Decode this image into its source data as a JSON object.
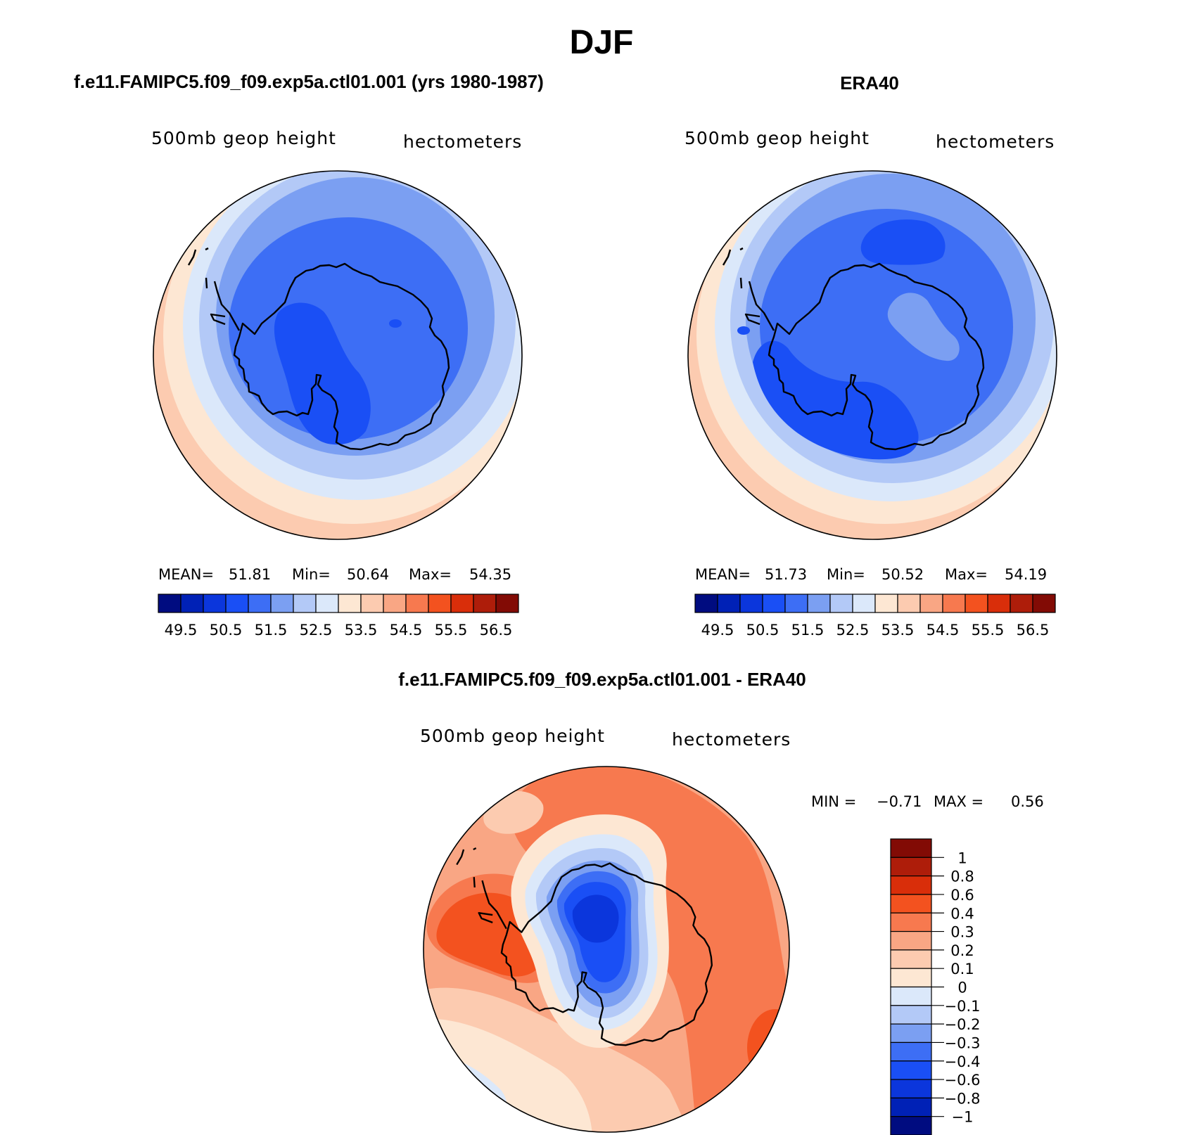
{
  "figure": {
    "title": "DJF",
    "colors": {
      "palette": [
        "#000c80",
        "#0021b6",
        "#0b36dc",
        "#1a4ff5",
        "#3d6ef5",
        "#7b9ff2",
        "#b3c9f7",
        "#dbe8fa",
        "#fde7d3",
        "#fccbb0",
        "#f9a684",
        "#f7794f",
        "#f3521f",
        "#d92e0a",
        "#ae1d0a",
        "#820b05"
      ]
    }
  },
  "panels": {
    "model": {
      "title": "f.e11.FAMIPC5.f09_f09.exp5a.ctl01.001 (yrs 1980-1987)",
      "variable": "500mb geop height",
      "units": "hectometers",
      "stats": {
        "mean_label": "MEAN=",
        "mean": "51.81",
        "min_label": "Min=",
        "min": "50.64",
        "max_label": "Max=",
        "max": "54.35"
      },
      "colorbar_ticks": [
        "49.5",
        "50.5",
        "51.5",
        "52.5",
        "53.5",
        "54.5",
        "55.5",
        "56.5"
      ]
    },
    "obs": {
      "title": "ERA40",
      "variable": "500mb geop height",
      "units": "hectometers",
      "stats": {
        "mean_label": "MEAN=",
        "mean": "51.73",
        "min_label": "Min=",
        "min": "50.52",
        "max_label": "Max=",
        "max": "54.19"
      },
      "colorbar_ticks": [
        "49.5",
        "50.5",
        "51.5",
        "52.5",
        "53.5",
        "54.5",
        "55.5",
        "56.5"
      ]
    },
    "diff": {
      "title": "f.e11.FAMIPC5.f09_f09.exp5a.ctl01.001 - ERA40",
      "variable": "500mb geop height",
      "units": "hectometers",
      "stats": {
        "min_label": "MIN =",
        "min": "−0.71",
        "max_label": "MAX =",
        "max": "0.56"
      },
      "colorbar_ticks": [
        "1",
        "0.8",
        "0.6",
        "0.4",
        "0.3",
        "0.2",
        "0.1",
        "0",
        "−0.1",
        "−0.2",
        "−0.3",
        "−0.4",
        "−0.6",
        "−0.8",
        "−1"
      ]
    }
  }
}
